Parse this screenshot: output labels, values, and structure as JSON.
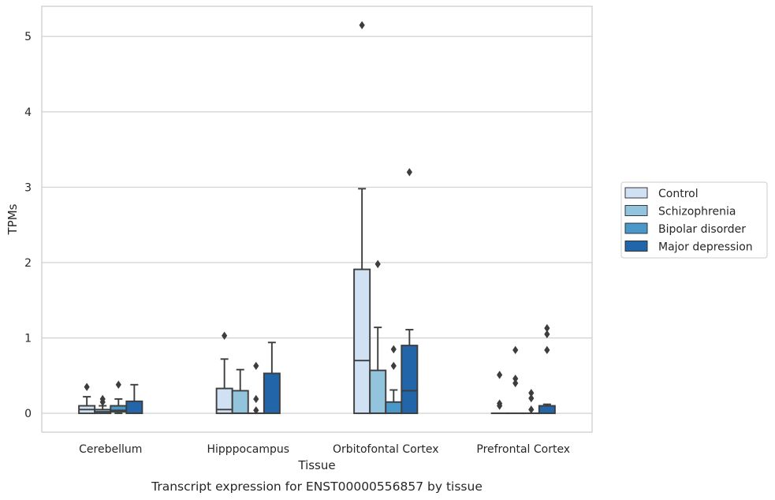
{
  "chart_data": {
    "type": "box",
    "title": "",
    "caption": "Transcript expression for ENST00000556857 by tissue",
    "xlabel": "Tissue",
    "ylabel": "TPMs",
    "ylim": [
      -0.25,
      5.4
    ],
    "yticks": [
      0,
      1,
      2,
      3,
      4,
      5
    ],
    "grid": true,
    "legend_position": "right",
    "categories": [
      "Cerebellum",
      "Hipppocampus",
      "Orbitofontal Cortex",
      "Prefrontal Cortex"
    ],
    "series": [
      {
        "name": "Control",
        "color": "#cfe1f2",
        "boxes": [
          {
            "min": 0.0,
            "q1": 0.0,
            "median": 0.05,
            "q3": 0.1,
            "max": 0.22,
            "outliers": [
              0.35
            ]
          },
          {
            "min": 0.0,
            "q1": 0.0,
            "median": 0.05,
            "q3": 0.33,
            "max": 0.72,
            "outliers": [
              1.03
            ]
          },
          {
            "min": 0.0,
            "q1": 0.0,
            "median": 0.7,
            "q3": 1.91,
            "max": 2.98,
            "outliers": [
              5.15
            ]
          },
          {
            "min": 0.0,
            "q1": 0.0,
            "median": 0.0,
            "q3": 0.0,
            "max": 0.0,
            "outliers": [
              0.1,
              0.13,
              0.51
            ]
          }
        ]
      },
      {
        "name": "Schizophrenia",
        "color": "#93c4de",
        "boxes": [
          {
            "min": 0.0,
            "q1": 0.0,
            "median": 0.02,
            "q3": 0.05,
            "max": 0.1,
            "outliers": [
              0.15,
              0.19
            ]
          },
          {
            "min": 0.0,
            "q1": 0.0,
            "median": 0.0,
            "q3": 0.3,
            "max": 0.58,
            "outliers": []
          },
          {
            "min": 0.0,
            "q1": 0.0,
            "median": 0.0,
            "q3": 0.57,
            "max": 1.14,
            "outliers": [
              1.98
            ]
          },
          {
            "min": 0.0,
            "q1": 0.0,
            "median": 0.0,
            "q3": 0.0,
            "max": 0.0,
            "outliers": [
              0.4,
              0.46,
              0.84
            ]
          }
        ]
      },
      {
        "name": "Bipolar disorder",
        "color": "#4a98c9",
        "boxes": [
          {
            "min": 0.0,
            "q1": 0.02,
            "median": 0.04,
            "q3": 0.1,
            "max": 0.19,
            "outliers": [
              0.38
            ]
          },
          {
            "min": 0.0,
            "q1": 0.0,
            "median": 0.0,
            "q3": 0.0,
            "max": 0.0,
            "outliers": [
              0.04,
              0.19,
              0.63
            ]
          },
          {
            "min": 0.0,
            "q1": 0.0,
            "median": 0.0,
            "q3": 0.15,
            "max": 0.31,
            "outliers": [
              0.63,
              0.85
            ]
          },
          {
            "min": 0.0,
            "q1": 0.0,
            "median": 0.0,
            "q3": 0.0,
            "max": 0.0,
            "outliers": [
              0.05,
              0.2,
              0.27
            ]
          }
        ]
      },
      {
        "name": "Major depression",
        "color": "#2365a9",
        "boxes": [
          {
            "min": 0.0,
            "q1": 0.0,
            "median": 0.0,
            "q3": 0.16,
            "max": 0.38,
            "outliers": []
          },
          {
            "min": 0.0,
            "q1": 0.0,
            "median": 0.0,
            "q3": 0.53,
            "max": 0.94,
            "outliers": []
          },
          {
            "min": 0.0,
            "q1": 0.0,
            "median": 0.3,
            "q3": 0.9,
            "max": 1.11,
            "outliers": [
              3.2
            ]
          },
          {
            "min": 0.0,
            "q1": 0.0,
            "median": 0.0,
            "q3": 0.1,
            "max": 0.12,
            "outliers": [
              0.84,
              1.05,
              1.13
            ]
          }
        ]
      }
    ]
  }
}
